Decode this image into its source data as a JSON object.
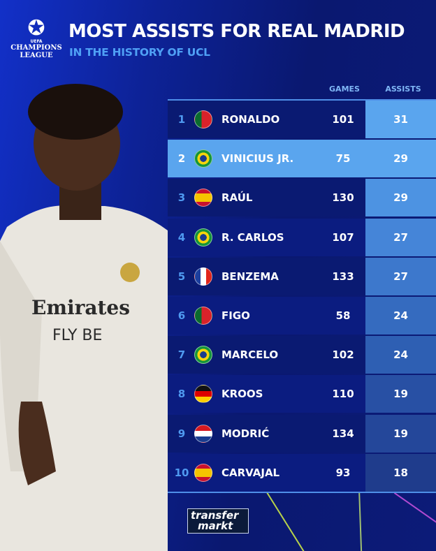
{
  "header": {
    "title": "MOST ASSISTS FOR REAL MADRID",
    "subtitle": "IN THE HISTORY OF UCL",
    "logo": {
      "org": "UEFA",
      "line1": "CHAMPIONS",
      "line2": "LEAGUE"
    }
  },
  "table": {
    "columns": {
      "games": "GAMES",
      "assists": "ASSISTS"
    },
    "highlight_color": "#5aa5ee",
    "rows": [
      {
        "rank": "1",
        "country": "Portugal",
        "name": "RONALDO",
        "games": "101",
        "assists": "31"
      },
      {
        "rank": "2",
        "country": "Brazil",
        "name": "VINICIUS JR.",
        "games": "75",
        "assists": "29",
        "highlighted": true
      },
      {
        "rank": "3",
        "country": "Spain",
        "name": "RAÚL",
        "games": "130",
        "assists": "29"
      },
      {
        "rank": "4",
        "country": "Brazil",
        "name": "R. CARLOS",
        "games": "107",
        "assists": "27"
      },
      {
        "rank": "5",
        "country": "France",
        "name": "BENZEMA",
        "games": "133",
        "assists": "27"
      },
      {
        "rank": "6",
        "country": "Portugal",
        "name": "FIGO",
        "games": "58",
        "assists": "24"
      },
      {
        "rank": "7",
        "country": "Brazil",
        "name": "MARCELO",
        "games": "102",
        "assists": "24"
      },
      {
        "rank": "8",
        "country": "Germany",
        "name": "KROOS",
        "games": "110",
        "assists": "19"
      },
      {
        "rank": "9",
        "country": "Croatia",
        "name": "MODRIĆ",
        "games": "134",
        "assists": "19"
      },
      {
        "rank": "10",
        "country": "Spain",
        "name": "CARVAJAL",
        "games": "93",
        "assists": "18"
      }
    ]
  },
  "player_photo": {
    "shirt_sponsor_line1": "Emirates",
    "shirt_sponsor_line2": "FLY BE"
  },
  "footer": {
    "brand_line1": "transfer",
    "brand_line2": "markt"
  }
}
